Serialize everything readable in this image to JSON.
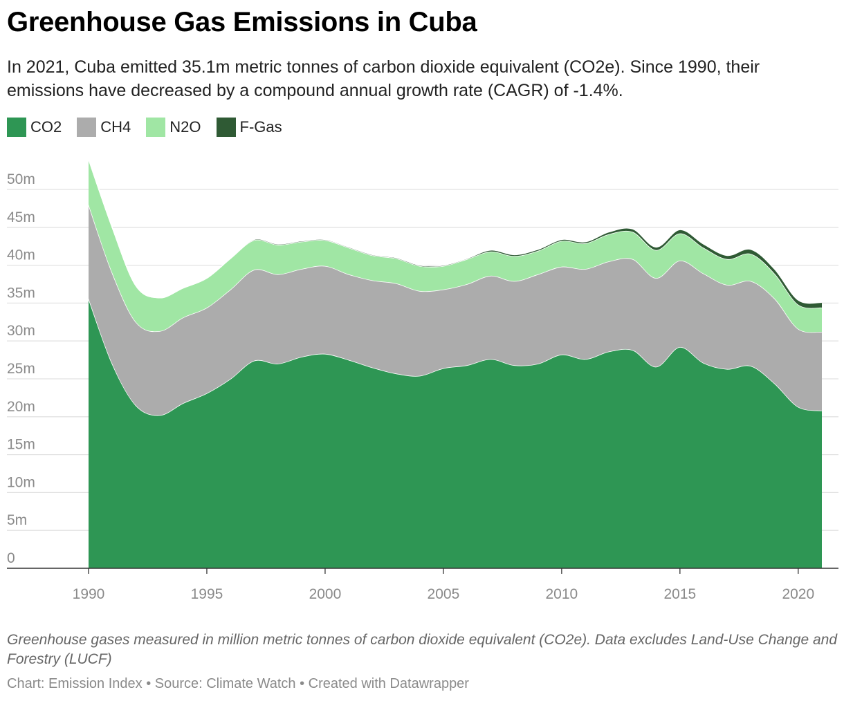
{
  "header": {
    "title": "Greenhouse Gas Emissions in Cuba",
    "subtitle": "In 2021, Cuba emitted 35.1m metric tonnes of carbon dioxide equivalent (CO2e). Since 1990, their emissions have decreased by a compound annual growth rate (CAGR) of -1.4%."
  },
  "footer": {
    "note": "Greenhouse gases measured in million metric tonnes of carbon dioxide equivalent (CO2e). Data excludes Land-Use Change and Forestry (LUCF)",
    "credit": "Chart: Emission Index • Source: Climate Watch • Created with Datawrapper"
  },
  "chart_data": {
    "type": "area",
    "stacked": true,
    "title": "Greenhouse Gas Emissions in Cuba",
    "xlabel": "",
    "ylabel": "",
    "x": [
      1990,
      1991,
      1992,
      1993,
      1994,
      1995,
      1996,
      1997,
      1998,
      1999,
      2000,
      2001,
      2002,
      2003,
      2004,
      2005,
      2006,
      2007,
      2008,
      2009,
      2010,
      2011,
      2012,
      2013,
      2014,
      2015,
      2016,
      2017,
      2018,
      2019,
      2020,
      2021
    ],
    "xlim": [
      1990,
      2021
    ],
    "ylim": [
      0,
      53
    ],
    "x_ticks": [
      1990,
      1995,
      2000,
      2005,
      2010,
      2015,
      2020
    ],
    "x_tick_labels": [
      "1990",
      "1995",
      "2000",
      "2005",
      "2010",
      "2015",
      "2020"
    ],
    "y_ticks": [
      0,
      5,
      10,
      15,
      20,
      25,
      30,
      35,
      40,
      45,
      50
    ],
    "y_tick_labels": [
      "0",
      "5m",
      "10m",
      "15m",
      "20m",
      "25m",
      "30m",
      "35m",
      "40m",
      "45m",
      "50m"
    ],
    "grid": true,
    "legend_position": "top-left",
    "series": [
      {
        "name": "CO2",
        "color": "#2e9654",
        "values": [
          35.6,
          27.0,
          21.5,
          20.2,
          21.8,
          23.1,
          25.0,
          27.4,
          27.0,
          27.9,
          28.3,
          27.5,
          26.5,
          25.7,
          25.4,
          26.4,
          26.8,
          27.6,
          26.8,
          27.0,
          28.2,
          27.6,
          28.6,
          28.8,
          26.6,
          29.2,
          27.1,
          26.3,
          26.7,
          24.4,
          21.3,
          20.8
        ]
      },
      {
        "name": "CH4",
        "color": "#acacac",
        "values": [
          12.4,
          12.0,
          11.0,
          11.1,
          11.3,
          11.3,
          11.8,
          12.0,
          11.8,
          11.6,
          11.6,
          11.3,
          11.5,
          11.9,
          11.2,
          10.4,
          10.7,
          11.0,
          11.1,
          11.8,
          11.6,
          11.9,
          11.9,
          12.0,
          11.7,
          11.4,
          11.8,
          11.1,
          11.2,
          11.2,
          10.3,
          10.4
        ]
      },
      {
        "name": "N2O",
        "color": "#a0e6a4",
        "values": [
          6.0,
          6.0,
          4.8,
          4.4,
          3.9,
          3.9,
          4.1,
          3.9,
          3.9,
          3.6,
          3.4,
          3.5,
          3.3,
          3.3,
          3.3,
          3.1,
          3.3,
          3.2,
          3.3,
          3.1,
          3.4,
          3.4,
          3.6,
          3.6,
          3.7,
          3.6,
          3.4,
          3.4,
          3.6,
          3.3,
          3.2,
          3.2
        ]
      },
      {
        "name": "F-Gas",
        "color": "#2f5a34",
        "values": [
          0,
          0,
          0,
          0,
          0,
          0,
          0,
          0.1,
          0.1,
          0.1,
          0.1,
          0.1,
          0.1,
          0.1,
          0.1,
          0.1,
          0.1,
          0.2,
          0.2,
          0.2,
          0.2,
          0.2,
          0.3,
          0.4,
          0.4,
          0.5,
          0.5,
          0.5,
          0.6,
          0.6,
          0.6,
          0.7
        ]
      }
    ]
  }
}
